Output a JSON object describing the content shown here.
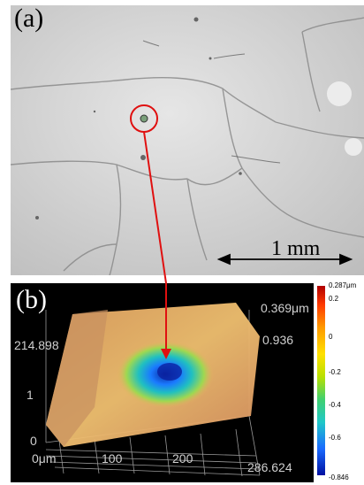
{
  "panel_a": {
    "label": "(a)",
    "scale_bar_label": "1 mm"
  },
  "panel_b": {
    "label": "(b)",
    "z_top_label": "0.369μm",
    "z_mid_label": "0.936",
    "y_max_label": "214.898",
    "y_partial_label": "1",
    "y_zero_label": "0",
    "x_labels": [
      "0μm",
      "100",
      "200",
      "286.624"
    ]
  },
  "colorbar": {
    "max_label": "0.287μm",
    "ticks": [
      "0.2",
      "0",
      "-0.2",
      "-0.4",
      "-0.6"
    ],
    "min_label": "-0.846"
  },
  "colors": {
    "marker_red": "#e01010",
    "background_gray": "#d9d9d9"
  }
}
